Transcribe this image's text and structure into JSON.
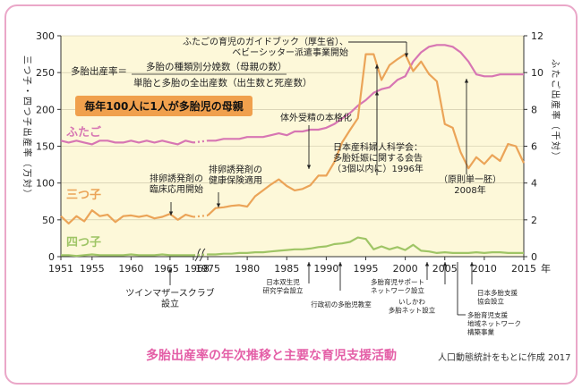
{
  "footer": {
    "caption": "多胎出産率の年次推移と主要な育児支援活動",
    "credit": "人口動態統計をもとに作成 2017"
  },
  "chart_data": {
    "type": "line",
    "xlim": [
      1951,
      2015
    ],
    "x_ticks": [
      1951,
      1955,
      1960,
      1965,
      1968,
      1975,
      1980,
      1985,
      1990,
      1995,
      2000,
      2005,
      2010,
      2015
    ],
    "x_tick_labels": [
      "1951",
      "1955",
      "1960",
      "1965",
      "1968",
      "1975",
      "1980",
      "1985",
      "1990",
      "1995",
      "2000",
      "2005",
      "2010",
      "2015"
    ],
    "x_unit": "年",
    "left_axis": {
      "label": "三つ子・四つ子出産率（万対）",
      "ylim": [
        0,
        300
      ],
      "ticks": [
        0,
        50,
        100,
        150,
        200,
        250,
        300
      ]
    },
    "right_axis": {
      "label": "ふたご出産率（千対）",
      "ylim": [
        0,
        12
      ],
      "ticks": [
        0,
        2,
        4,
        6,
        8,
        10,
        12
      ]
    },
    "axis_break_years": [
      1968,
      1975
    ],
    "formula": {
      "lhs": "多胎出産率＝",
      "numerator": "多胎の種類別分娩数（母親の数）",
      "denominator": "単胎と多胎の全出産数（出生数と死産数）"
    },
    "highlight_box": "毎年100人に1人が多胎児の母親",
    "series": [
      {
        "name": "ふたご",
        "axis": "right",
        "color": "#d776b3",
        "x": [
          1951,
          1952,
          1953,
          1954,
          1955,
          1956,
          1957,
          1958,
          1959,
          1960,
          1961,
          1962,
          1963,
          1964,
          1965,
          1966,
          1967,
          1968,
          1975,
          1976,
          1977,
          1978,
          1979,
          1980,
          1981,
          1982,
          1983,
          1984,
          1985,
          1986,
          1987,
          1988,
          1989,
          1990,
          1991,
          1992,
          1993,
          1994,
          1995,
          1996,
          1997,
          1998,
          1999,
          2000,
          2001,
          2002,
          2003,
          2004,
          2005,
          2006,
          2007,
          2008,
          2009,
          2010,
          2011,
          2012,
          2013,
          2014,
          2015
        ],
        "y": [
          6.3,
          6.2,
          6.3,
          6.2,
          6.1,
          6.3,
          6.3,
          6.2,
          6.2,
          6.3,
          6.2,
          6.3,
          6.2,
          6.3,
          6.2,
          6.1,
          6.3,
          6.2,
          6.3,
          6.3,
          6.4,
          6.4,
          6.4,
          6.5,
          6.5,
          6.5,
          6.6,
          6.7,
          6.6,
          6.8,
          6.8,
          6.9,
          6.9,
          7.0,
          7.2,
          7.5,
          7.8,
          8.2,
          8.5,
          8.9,
          9.1,
          9.2,
          9.6,
          9.8,
          10.6,
          11.1,
          11.4,
          11.5,
          11.5,
          11.4,
          11.1,
          10.6,
          9.9,
          9.8,
          9.8,
          9.9,
          9.9,
          9.9,
          9.9
        ]
      },
      {
        "name": "三つ子",
        "axis": "left",
        "color": "#eba458",
        "x": [
          1951,
          1952,
          1953,
          1954,
          1955,
          1956,
          1957,
          1958,
          1959,
          1960,
          1961,
          1962,
          1963,
          1964,
          1965,
          1966,
          1967,
          1968,
          1975,
          1976,
          1977,
          1978,
          1979,
          1980,
          1981,
          1982,
          1983,
          1984,
          1985,
          1986,
          1987,
          1988,
          1989,
          1990,
          1991,
          1992,
          1993,
          1994,
          1995,
          1996,
          1997,
          1998,
          1999,
          2000,
          2001,
          2002,
          2003,
          2004,
          2005,
          2006,
          2007,
          2008,
          2009,
          2010,
          2011,
          2012,
          2013,
          2014,
          2015
        ],
        "y": [
          55,
          45,
          55,
          48,
          63,
          55,
          57,
          47,
          55,
          56,
          54,
          56,
          52,
          54,
          58,
          50,
          57,
          54,
          56,
          66,
          67,
          69,
          70,
          68,
          82,
          90,
          98,
          105,
          96,
          90,
          92,
          97,
          110,
          110,
          128,
          155,
          172,
          188,
          275,
          275,
          240,
          260,
          268,
          275,
          252,
          265,
          248,
          238,
          180,
          175,
          142,
          120,
          135,
          126,
          138,
          130,
          153,
          150,
          127
        ]
      },
      {
        "name": "四つ子",
        "axis": "left",
        "color": "#9fc566",
        "x": [
          1951,
          1952,
          1953,
          1954,
          1955,
          1956,
          1957,
          1958,
          1959,
          1960,
          1961,
          1962,
          1963,
          1964,
          1965,
          1966,
          1967,
          1968,
          1975,
          1976,
          1977,
          1978,
          1979,
          1980,
          1981,
          1982,
          1983,
          1984,
          1985,
          1986,
          1987,
          1988,
          1989,
          1990,
          1991,
          1992,
          1993,
          1994,
          1995,
          1996,
          1997,
          1998,
          1999,
          2000,
          2001,
          2002,
          2003,
          2004,
          2005,
          2006,
          2007,
          2008,
          2009,
          2010,
          2011,
          2012,
          2013,
          2014,
          2015
        ],
        "y": [
          2,
          2,
          1,
          2,
          3,
          2,
          2,
          2,
          2,
          3,
          2,
          2,
          2,
          3,
          2,
          2,
          2,
          2,
          3,
          3,
          4,
          4,
          5,
          5,
          6,
          6,
          7,
          8,
          9,
          10,
          10,
          11,
          13,
          14,
          17,
          18,
          20,
          26,
          24,
          10,
          14,
          10,
          13,
          9,
          16,
          8,
          7,
          5,
          6,
          5,
          5,
          5,
          6,
          5,
          6,
          6,
          5,
          5,
          5
        ]
      }
    ],
    "annotations": [
      {
        "text": "ふたごの育児のガイドブック（厚生省）、\nベビーシッター派遣事業開始"
      },
      {
        "text": "体外受精の本格化"
      },
      {
        "text": "日本産科婦人科学会：\n多胎妊娠に関する会告\n（3個以内に）1996年"
      },
      {
        "text": "（原則単一胚）\n2008年"
      },
      {
        "text": "排卵誘発剤の\n臨床応用開始"
      },
      {
        "text": "排卵誘発剤の\n健康保険適用"
      },
      {
        "text": "ツインマザースクラブ\n設立"
      },
      {
        "text": "日本双生児\n研究学会設立"
      },
      {
        "text": "行政初の多胎児教室"
      },
      {
        "text": "多胎育児サポート\nネットワーク設立"
      },
      {
        "text": "いしかわ\n多胎ネット設立"
      },
      {
        "text": "日本多胎支援\n協会設立"
      },
      {
        "text": "多胎育児支援\n地域ネットワーク\n構築事業"
      }
    ]
  }
}
